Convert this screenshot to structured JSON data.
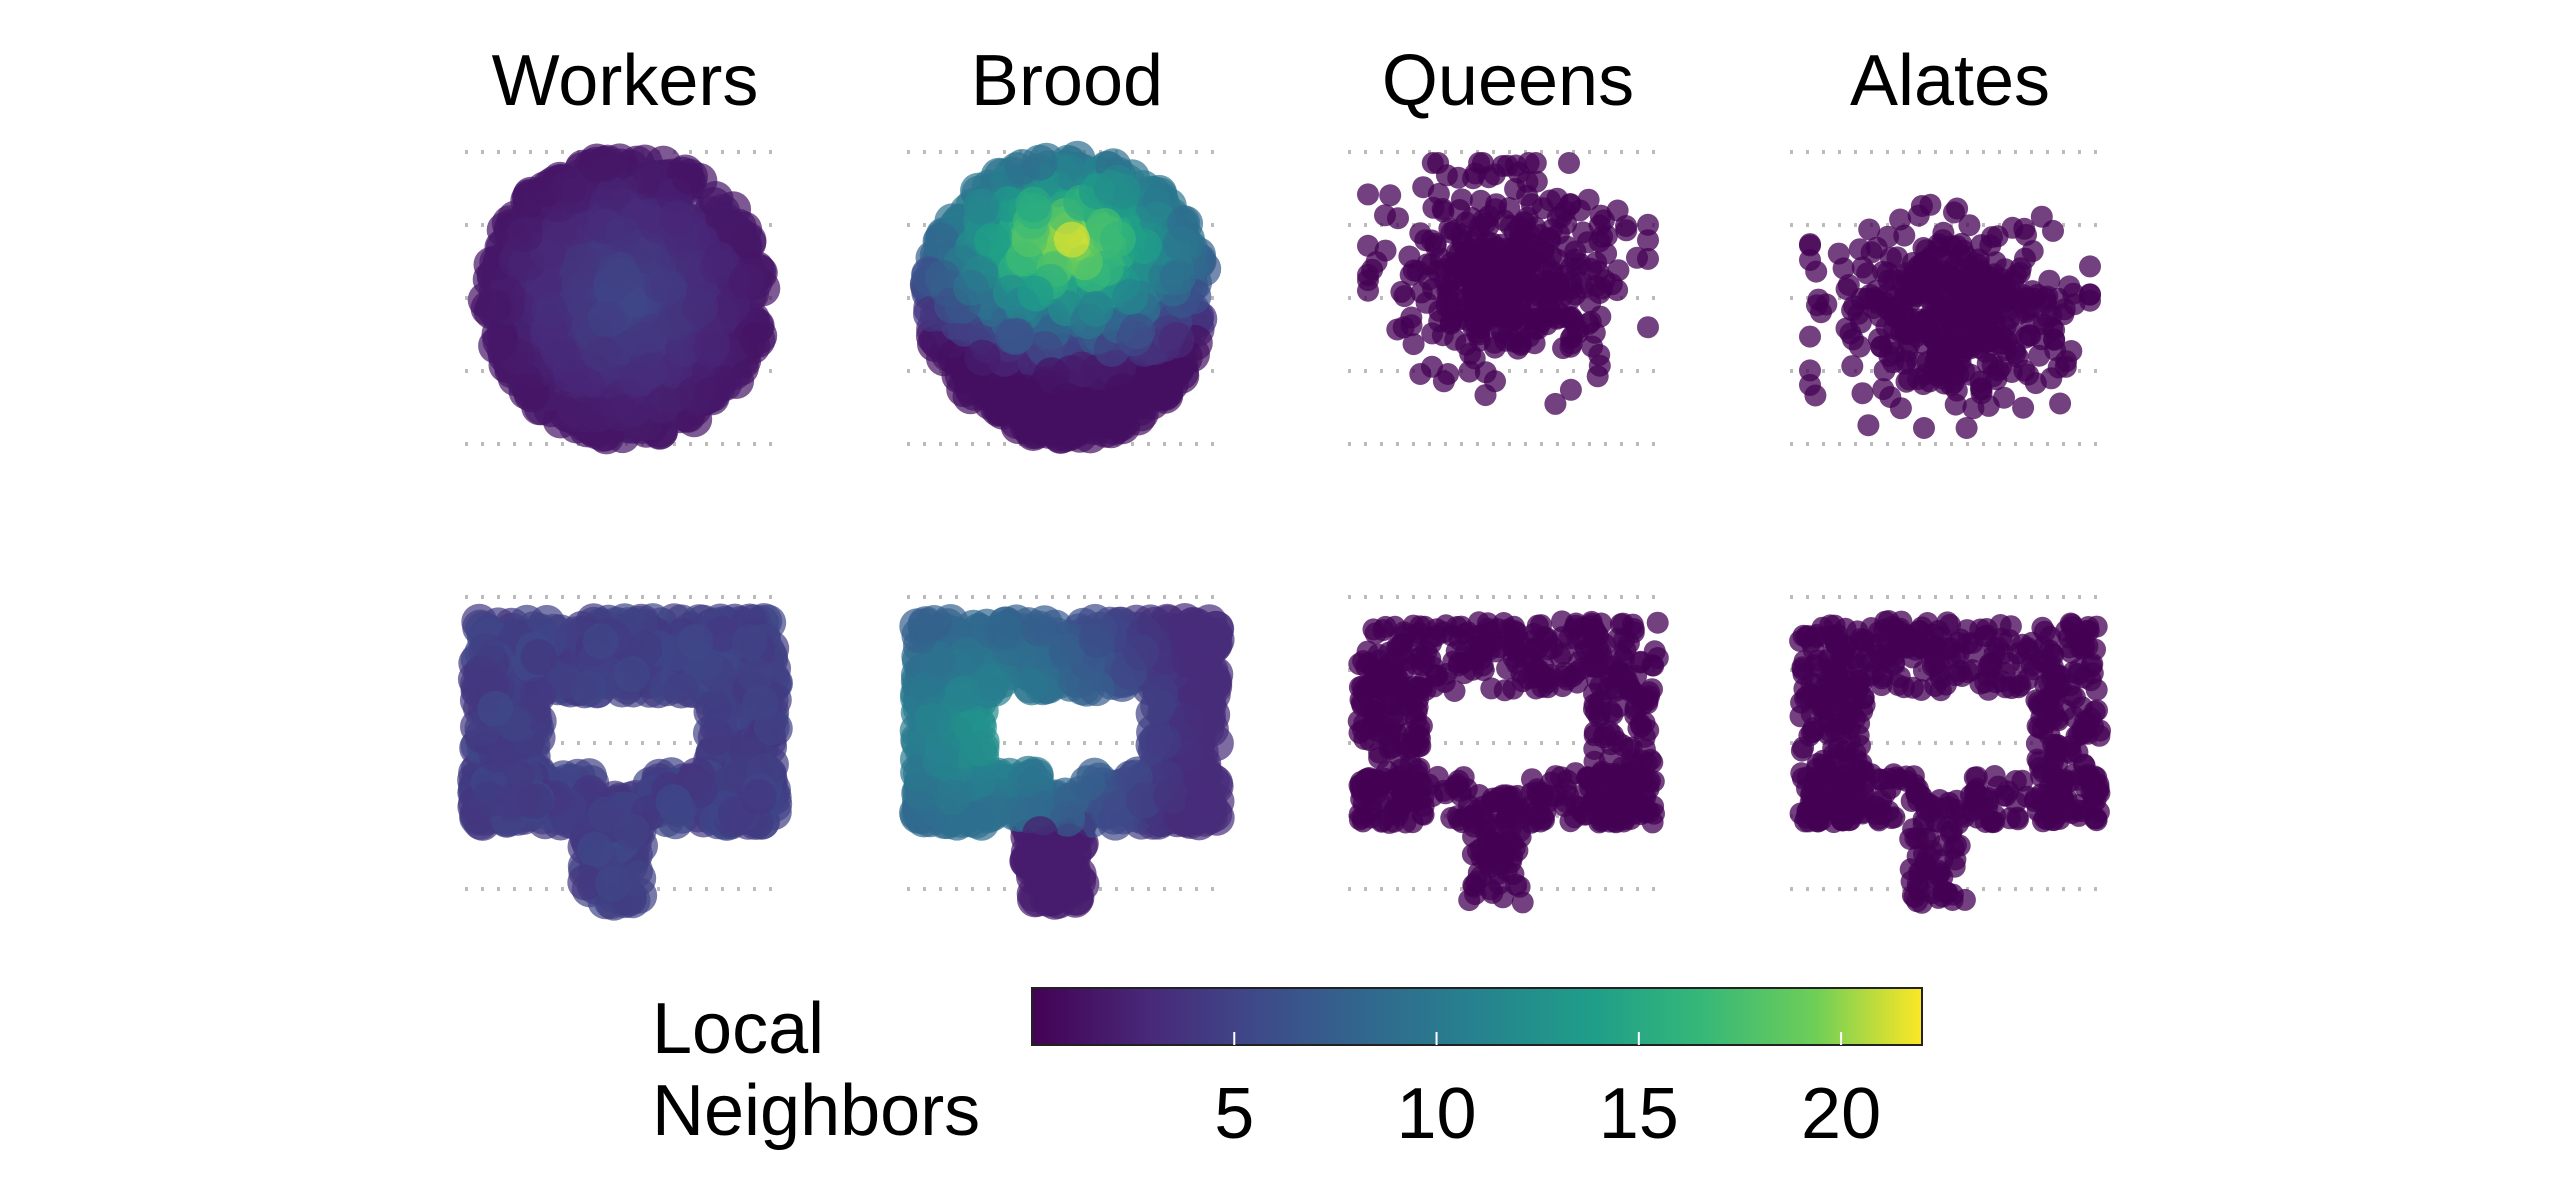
{
  "chart_data": {
    "type": "scatter",
    "description_of_layout": "4x2 grid of scatter panels; rows are nest shapes (circle, C-shaped tunnel), columns are castes",
    "columns": [
      "Workers",
      "Brood",
      "Queens",
      "Alates"
    ],
    "rows": [
      "circular nest",
      "tunnel nest"
    ],
    "color_encoding": "Local Neighbors",
    "colorscale": "viridis",
    "colorbar": {
      "title": [
        "Local",
        "Neighbors"
      ],
      "ticks": [
        5,
        10,
        15,
        20
      ],
      "range": [
        0,
        22
      ]
    },
    "gridlines": "dotted, grey",
    "panels": [
      {
        "caste": "Workers",
        "nest": "circle",
        "density": "uniform disk",
        "color_range": [
          1,
          6
        ]
      },
      {
        "caste": "Brood",
        "nest": "circle",
        "density": "peaked near upper center",
        "color_range": [
          1,
          22
        ]
      },
      {
        "caste": "Queens",
        "nest": "circle",
        "density": "sparse cloud",
        "color_range": [
          0,
          1
        ]
      },
      {
        "caste": "Alates",
        "nest": "circle",
        "density": "sparse cloud",
        "color_range": [
          0,
          1
        ]
      },
      {
        "caste": "Workers",
        "nest": "tunnel",
        "density": "uniform along tunnel",
        "color_range": [
          2,
          7
        ]
      },
      {
        "caste": "Brood",
        "nest": "tunnel",
        "density": "higher at left arms",
        "color_range": [
          2,
          13
        ]
      },
      {
        "caste": "Queens",
        "nest": "tunnel",
        "density": "along tunnel",
        "color_range": [
          0,
          1
        ]
      },
      {
        "caste": "Alates",
        "nest": "tunnel",
        "density": "along tunnel",
        "color_range": [
          0,
          1
        ]
      }
    ]
  },
  "colors": {
    "viridis_low": "#440154",
    "viridis_mid": "#21908d",
    "viridis_high": "#fde725",
    "gridline": "#bbbbbb"
  }
}
